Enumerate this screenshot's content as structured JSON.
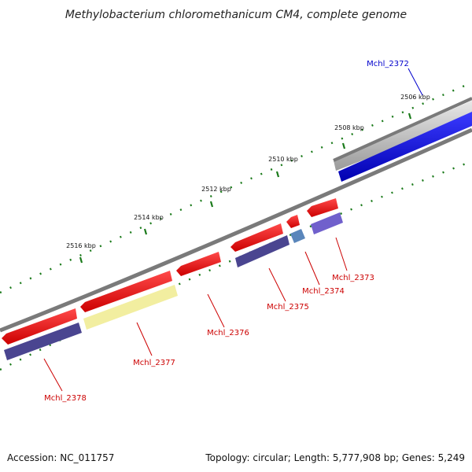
{
  "title": "Methylobacterium chloromethanicum CM4, complete genome",
  "footer": {
    "accession": "Accession: NC_011757",
    "topology": "Topology: circular; Length: 5,777,908 bp; Genes: 5,249"
  },
  "ticks": [
    "2506 kbp",
    "2508 kbp",
    "2510 kbp",
    "2512 kbp",
    "2514 kbp",
    "2516 kbp"
  ],
  "genes": [
    {
      "name": "Mchl_2372",
      "color": "#0000cc"
    },
    {
      "name": "Mchl_2373",
      "color": "#cc0000"
    },
    {
      "name": "Mchl_2374",
      "color": "#cc0000"
    },
    {
      "name": "Mchl_2375",
      "color": "#cc0000"
    },
    {
      "name": "Mchl_2376",
      "color": "#cc0000"
    },
    {
      "name": "Mchl_2377",
      "color": "#cc0000"
    },
    {
      "name": "Mchl_2378",
      "color": "#cc0000"
    }
  ],
  "colors": {
    "backbone": "#7a7a7a",
    "tick": "#1a7a1a",
    "gene_reverse": "#ff1a1a",
    "gene_forward": "#0000ee",
    "cds_dark": "#4a4590",
    "cds_light": "#f2eea0",
    "cds_blue": "#5a86bb",
    "cds_violet": "#7060cc",
    "gene_gray": "#c8c8c8"
  }
}
